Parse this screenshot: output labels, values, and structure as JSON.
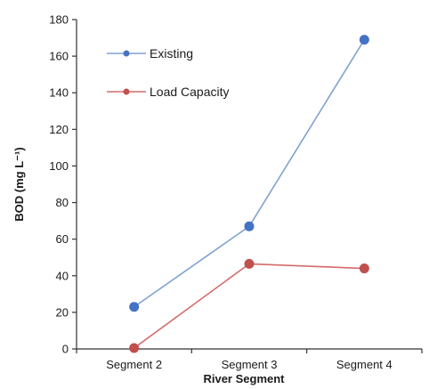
{
  "chart_data": {
    "type": "line",
    "title": "",
    "xlabel": "River Segment",
    "ylabel": "BOD (mg L⁻¹)",
    "categories": [
      "Segment 2",
      "Segment 3",
      "Segment 4"
    ],
    "ylim": [
      0,
      180
    ],
    "yticks": [
      0,
      20,
      40,
      60,
      80,
      100,
      120,
      140,
      160,
      180
    ],
    "grid": false,
    "legend_position": "top-left",
    "series": [
      {
        "name": "Existing",
        "values": [
          23,
          67,
          169
        ],
        "line_color": "#7fa3d0",
        "marker_color": "#4472c4"
      },
      {
        "name": "Load Capacity",
        "values": [
          0.5,
          46.5,
          44
        ],
        "line_color": "#d46a6a",
        "marker_color": "#c0504d"
      }
    ]
  }
}
